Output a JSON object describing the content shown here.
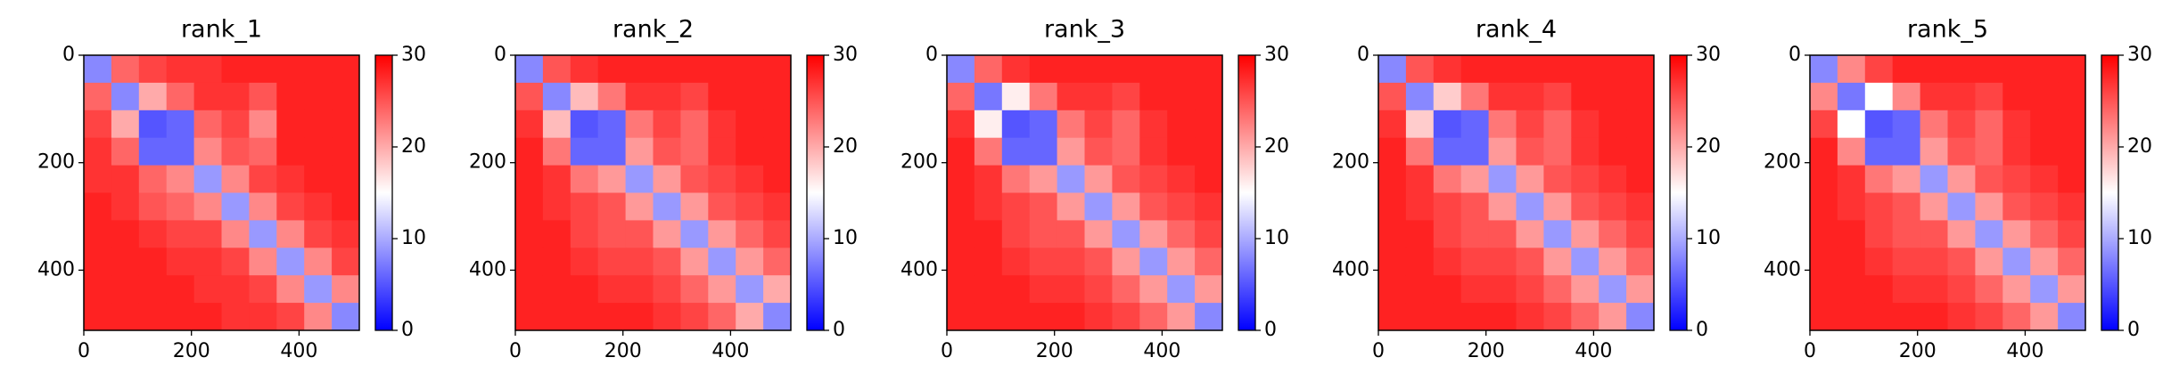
{
  "chart_data": [
    {
      "type": "heatmap",
      "title": "rank_1",
      "xlim": [
        0,
        512
      ],
      "ylim": [
        512,
        0
      ],
      "xticks": [
        0,
        200,
        400
      ],
      "yticks": [
        0,
        200,
        400
      ],
      "clim": [
        0,
        30
      ],
      "cticks": [
        0,
        10,
        20,
        30
      ],
      "colors": [
        "#0000ff",
        "#ffffff",
        "#ff0000"
      ],
      "z": [
        [
          8,
          24,
          26,
          27,
          27,
          28,
          28,
          28,
          28,
          28
        ],
        [
          24,
          8,
          20,
          24,
          27,
          27,
          25,
          28,
          28,
          28
        ],
        [
          26,
          20,
          5,
          6,
          24,
          26,
          22,
          28,
          28,
          28
        ],
        [
          27,
          24,
          6,
          6,
          22,
          25,
          24,
          28,
          28,
          28
        ],
        [
          27,
          27,
          24,
          22,
          9,
          22,
          26,
          27,
          28,
          28
        ],
        [
          28,
          27,
          25,
          24,
          22,
          9,
          22,
          26,
          27,
          28
        ],
        [
          28,
          28,
          27,
          26,
          26,
          22,
          9,
          22,
          26,
          27
        ],
        [
          28,
          28,
          28,
          27,
          27,
          26,
          22,
          9,
          22,
          26
        ],
        [
          28,
          28,
          28,
          28,
          27,
          27,
          26,
          22,
          9,
          22
        ],
        [
          28,
          28,
          28,
          28,
          28,
          27,
          27,
          26,
          22,
          8
        ]
      ]
    },
    {
      "type": "heatmap",
      "title": "rank_2",
      "xlim": [
        0,
        512
      ],
      "ylim": [
        512,
        0
      ],
      "xticks": [
        0,
        200,
        400
      ],
      "yticks": [
        0,
        200,
        400
      ],
      "clim": [
        0,
        30
      ],
      "cticks": [
        0,
        10,
        20,
        30
      ],
      "colors": [
        "#0000ff",
        "#ffffff",
        "#ff0000"
      ],
      "z": [
        [
          8,
          25,
          27,
          28,
          28,
          28,
          28,
          28,
          28,
          28
        ],
        [
          25,
          8,
          19,
          23,
          27,
          27,
          26,
          28,
          28,
          28
        ],
        [
          27,
          19,
          5,
          6,
          23,
          26,
          24,
          27,
          28,
          28
        ],
        [
          28,
          23,
          6,
          6,
          21,
          25,
          24,
          27,
          28,
          28
        ],
        [
          28,
          27,
          23,
          21,
          9,
          21,
          25,
          26,
          27,
          28
        ],
        [
          28,
          27,
          26,
          25,
          21,
          9,
          21,
          25,
          26,
          27
        ],
        [
          28,
          28,
          26,
          25,
          25,
          21,
          9,
          21,
          24,
          26
        ],
        [
          28,
          28,
          27,
          26,
          26,
          25,
          21,
          9,
          21,
          24
        ],
        [
          28,
          28,
          28,
          27,
          27,
          26,
          24,
          21,
          9,
          20
        ],
        [
          28,
          28,
          28,
          28,
          28,
          27,
          26,
          24,
          20,
          8
        ]
      ]
    },
    {
      "type": "heatmap",
      "title": "rank_3",
      "xlim": [
        0,
        512
      ],
      "ylim": [
        512,
        0
      ],
      "xticks": [
        0,
        200,
        400
      ],
      "yticks": [
        0,
        200,
        400
      ],
      "clim": [
        0,
        30
      ],
      "cticks": [
        0,
        10,
        20,
        30
      ],
      "colors": [
        "#0000ff",
        "#ffffff",
        "#ff0000"
      ],
      "z": [
        [
          8,
          24,
          27,
          28,
          28,
          28,
          28,
          28,
          28,
          28
        ],
        [
          24,
          7,
          16,
          23,
          27,
          27,
          26,
          28,
          28,
          28
        ],
        [
          27,
          16,
          5,
          6,
          23,
          26,
          24,
          27,
          28,
          28
        ],
        [
          28,
          23,
          6,
          6,
          21,
          25,
          24,
          27,
          28,
          28
        ],
        [
          28,
          27,
          23,
          21,
          9,
          21,
          25,
          26,
          27,
          28
        ],
        [
          28,
          27,
          26,
          25,
          21,
          9,
          21,
          25,
          26,
          27
        ],
        [
          28,
          28,
          26,
          25,
          25,
          21,
          9,
          21,
          24,
          26
        ],
        [
          28,
          28,
          27,
          26,
          26,
          25,
          21,
          9,
          21,
          24
        ],
        [
          28,
          28,
          28,
          27,
          27,
          26,
          24,
          21,
          9,
          21
        ],
        [
          28,
          28,
          28,
          28,
          28,
          27,
          26,
          24,
          21,
          8
        ]
      ]
    },
    {
      "type": "heatmap",
      "title": "rank_4",
      "xlim": [
        0,
        512
      ],
      "ylim": [
        512,
        0
      ],
      "xticks": [
        0,
        200,
        400
      ],
      "yticks": [
        0,
        200,
        400
      ],
      "clim": [
        0,
        30
      ],
      "cticks": [
        0,
        10,
        20,
        30
      ],
      "colors": [
        "#0000ff",
        "#ffffff",
        "#ff0000"
      ],
      "z": [
        [
          8,
          25,
          27,
          28,
          28,
          28,
          28,
          28,
          28,
          28
        ],
        [
          25,
          8,
          18,
          23,
          27,
          27,
          26,
          28,
          28,
          28
        ],
        [
          27,
          18,
          5,
          6,
          23,
          26,
          24,
          27,
          28,
          28
        ],
        [
          28,
          23,
          6,
          6,
          21,
          25,
          24,
          27,
          28,
          28
        ],
        [
          28,
          27,
          23,
          21,
          9,
          21,
          25,
          26,
          27,
          28
        ],
        [
          28,
          27,
          26,
          25,
          21,
          9,
          21,
          25,
          26,
          27
        ],
        [
          28,
          28,
          26,
          25,
          25,
          21,
          9,
          21,
          24,
          26
        ],
        [
          28,
          28,
          27,
          26,
          26,
          25,
          21,
          9,
          21,
          24
        ],
        [
          28,
          28,
          28,
          27,
          27,
          26,
          24,
          21,
          9,
          21
        ],
        [
          28,
          28,
          28,
          28,
          28,
          27,
          26,
          24,
          21,
          8
        ]
      ]
    },
    {
      "type": "heatmap",
      "title": "rank_5",
      "xlim": [
        0,
        512
      ],
      "ylim": [
        512,
        0
      ],
      "xticks": [
        0,
        200,
        400
      ],
      "yticks": [
        0,
        200,
        400
      ],
      "clim": [
        0,
        30
      ],
      "cticks": [
        0,
        10,
        20,
        30
      ],
      "colors": [
        "#0000ff",
        "#ffffff",
        "#ff0000"
      ],
      "z": [
        [
          8,
          22,
          26,
          28,
          28,
          28,
          28,
          28,
          28,
          28
        ],
        [
          22,
          7,
          15,
          22,
          27,
          27,
          26,
          28,
          28,
          28
        ],
        [
          26,
          15,
          5,
          6,
          23,
          26,
          24,
          27,
          28,
          28
        ],
        [
          28,
          22,
          6,
          6,
          21,
          25,
          24,
          27,
          28,
          28
        ],
        [
          28,
          27,
          23,
          21,
          9,
          21,
          25,
          26,
          27,
          28
        ],
        [
          28,
          27,
          26,
          25,
          21,
          9,
          21,
          25,
          26,
          27
        ],
        [
          28,
          28,
          26,
          25,
          25,
          21,
          9,
          21,
          24,
          26
        ],
        [
          28,
          28,
          27,
          26,
          26,
          25,
          21,
          9,
          21,
          24
        ],
        [
          28,
          28,
          28,
          27,
          27,
          26,
          24,
          21,
          9,
          21
        ],
        [
          28,
          28,
          28,
          28,
          28,
          27,
          26,
          24,
          21,
          8
        ]
      ]
    }
  ]
}
